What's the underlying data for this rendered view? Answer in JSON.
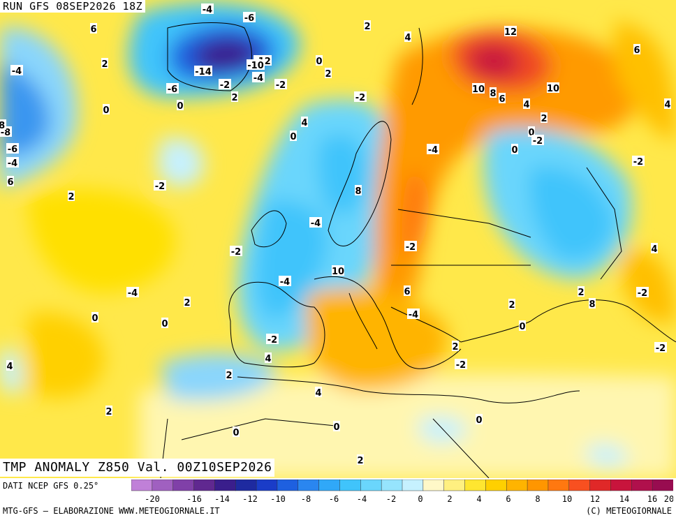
{
  "header": {
    "run": "RUN GFS 08SEP2026 18Z"
  },
  "title": {
    "text": "TMP ANOMALY Z850 Val. 00Z10SEP2026"
  },
  "footer": {
    "source": "DATI NCEP GFS 0.25°",
    "credit": "MTG-GFS – ELABORAZIONE WWW.METEOGIORNALE.IT",
    "copyright": "(C) METEOGIORNALE"
  },
  "legend": {
    "colors": [
      "#c080d8",
      "#a060c0",
      "#8040a8",
      "#602890",
      "#3a1e8c",
      "#1e2aa0",
      "#1a3cc8",
      "#1e60e0",
      "#2a86f0",
      "#30a8f8",
      "#40c4fb",
      "#6ad6fc",
      "#96e4fd",
      "#c6f1fe",
      "#fff8c8",
      "#fff080",
      "#ffe630",
      "#ffd000",
      "#ffb400",
      "#ff9600",
      "#ff7810",
      "#f85020",
      "#e02828",
      "#c8143c",
      "#b0104c",
      "#980c50"
    ],
    "tick_values": [
      "-20",
      "-16",
      "-14",
      "-12",
      "-10",
      "-8",
      "-6",
      "-4",
      "-2",
      "0",
      "2",
      "4",
      "6",
      "8",
      "10",
      "12",
      "14",
      "16",
      "20"
    ]
  },
  "map_labels": [
    {
      "t": "-4"
    },
    {
      "t": "6"
    },
    {
      "t": "-6"
    },
    {
      "t": "2"
    },
    {
      "t": "-4"
    },
    {
      "t": "2"
    },
    {
      "t": "-12"
    },
    {
      "t": "-10"
    },
    {
      "t": "-14"
    },
    {
      "t": "0"
    },
    {
      "t": "-6"
    },
    {
      "t": "-8"
    },
    {
      "t": "-4"
    },
    {
      "t": "-2"
    },
    {
      "t": "-2"
    },
    {
      "t": "2"
    },
    {
      "t": "2"
    },
    {
      "t": "4"
    },
    {
      "t": "12"
    },
    {
      "t": "6"
    },
    {
      "t": "0"
    },
    {
      "t": "0"
    },
    {
      "t": "-2"
    },
    {
      "t": "10"
    },
    {
      "t": "8"
    },
    {
      "t": "6"
    },
    {
      "t": "10"
    },
    {
      "t": "4"
    },
    {
      "t": "4"
    },
    {
      "t": "-8"
    },
    {
      "t": "-6"
    },
    {
      "t": "-4"
    },
    {
      "t": "4"
    },
    {
      "t": "0"
    },
    {
      "t": "2"
    },
    {
      "t": "0"
    },
    {
      "t": "-2"
    },
    {
      "t": "-2"
    },
    {
      "t": "0"
    },
    {
      "t": "-4"
    },
    {
      "t": "6"
    },
    {
      "t": "-2"
    },
    {
      "t": "2"
    },
    {
      "t": "8"
    },
    {
      "t": "-4"
    },
    {
      "t": "-2"
    },
    {
      "t": "-2"
    },
    {
      "t": "10"
    },
    {
      "t": "-4"
    },
    {
      "t": "-4"
    },
    {
      "t": "2"
    },
    {
      "t": "4"
    },
    {
      "t": "-2"
    },
    {
      "t": "2"
    },
    {
      "t": "8"
    },
    {
      "t": "0"
    },
    {
      "t": "0"
    },
    {
      "t": "2"
    },
    {
      "t": "0"
    },
    {
      "t": "6"
    },
    {
      "t": "-4"
    },
    {
      "t": "-2"
    },
    {
      "t": "4"
    },
    {
      "t": "2"
    },
    {
      "t": "-2"
    },
    {
      "t": "2"
    },
    {
      "t": "-2"
    },
    {
      "t": "4"
    },
    {
      "t": "4"
    },
    {
      "t": "2"
    },
    {
      "t": "0"
    },
    {
      "t": "0"
    },
    {
      "t": "0"
    },
    {
      "t": "2"
    },
    {
      "t": "4"
    },
    {
      "t": "0"
    },
    {
      "t": "4"
    },
    {
      "t": "-2"
    }
  ]
}
